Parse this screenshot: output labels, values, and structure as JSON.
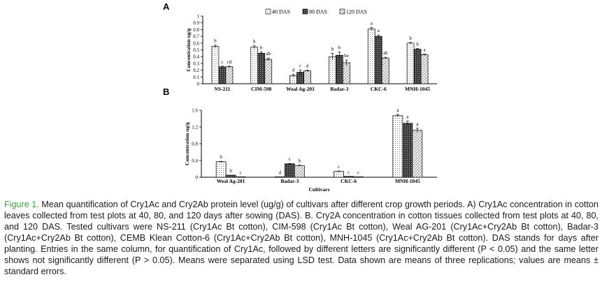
{
  "figure": {
    "caption_label": "Figure 1.",
    "caption_text": "Mean quantification of Cry1Ac and Cry2Ab protein level (ug/g) of cultivars after different crop growth periods. A) Cry1Ac concentration in cotton leaves collected from test plots at 40, 80, and 120 days after sowing (DAS). B. Cry2A concentration in cotton tissues collected from test plots at 40, 80, and 120 DAS. Tested cultivars were NS-211 (Cry1Ac Bt cotton), CIM-598 (Cry1Ac Bt cotton), Weal AG-201 (Cry1Ac+Cry2Ab Bt cotton), Badar-3 (Cry1Ac+Cry2Ab Bt cotton), CEMB Klean Cotton-6 (Cry1Ac+Cry2Ab Bt cotton), MNH-1045 (Cry1Ac+Cry2Ab Bt cotton). DAS stands for days after planting. Entries in the same column, for quantification of Cry1Ac, followed by different letters are significantly different (P < 0.05) and the same letter shows not significantly different (P > 0.05). Means were separated using LSD test. Data shown are means of three replications; values are means ± standard errors.",
    "fill_colors": {
      "s40": "#ffffff",
      "s80": "#555555",
      "s120": "#dddddd",
      "axis": "#000000"
    }
  },
  "chart_data": [
    {
      "panel": "A",
      "type": "bar",
      "title": "",
      "xlabel": "",
      "ylabel": "Concentration ug/g",
      "ylim": [
        0,
        1
      ],
      "yticks": [
        0,
        0.1,
        0.2,
        0.3,
        0.4,
        0.5,
        0.6,
        0.7,
        0.8,
        0.9,
        1
      ],
      "ytick_labels": [
        "0",
        "0.1",
        "0.2",
        "0.3",
        "0.4",
        "0.5",
        "0.6",
        "0.7",
        "0.8",
        "0.9",
        "1"
      ],
      "legend_position": "top",
      "categories": [
        "NS-211",
        "CIM-598",
        "Weal Ag-201",
        "Badar-3",
        "CKC-6",
        "MNH-1045"
      ],
      "series": [
        {
          "name": "40 DAS",
          "pattern": "dots",
          "values": [
            0.55,
            0.54,
            0.12,
            0.4,
            0.81,
            0.6
          ],
          "errors": [
            0.02,
            0.02,
            0.02,
            0.05,
            0.02,
            0.01
          ],
          "letters": [
            "b",
            "b",
            "d",
            "b",
            "a",
            "b"
          ]
        },
        {
          "name": "80 DAS",
          "pattern": "dark",
          "values": [
            0.25,
            0.45,
            0.17,
            0.42,
            0.7,
            0.51
          ],
          "errors": [
            0.01,
            0.02,
            0.03,
            0.05,
            0.02,
            0.01
          ],
          "letters": [
            "c",
            "b",
            "c",
            "b",
            "a",
            "b"
          ]
        },
        {
          "name": "120 DAS",
          "pattern": "hatch",
          "values": [
            0.25,
            0.36,
            0.19,
            0.31,
            0.38,
            0.43
          ],
          "errors": [
            0.01,
            0.02,
            0.01,
            0.04,
            0.01,
            0.01
          ],
          "letters": [
            "cd",
            "ab",
            "d",
            "be",
            "ab",
            "a"
          ]
        }
      ]
    },
    {
      "panel": "B",
      "type": "bar",
      "title": "",
      "xlabel": "Cultivars",
      "ylabel": "Concentration ug/g",
      "ylim": [
        0,
        1.6
      ],
      "yticks": [
        0,
        0.4,
        0.8,
        1.2,
        1.6
      ],
      "ytick_labels": [
        "0",
        "0.4",
        "0.8",
        "1.2",
        "1.6"
      ],
      "categories": [
        "Weal Ag-201",
        "Badar-3",
        "CKC-6",
        "MNH-1045"
      ],
      "series": [
        {
          "name": "40 DAS",
          "pattern": "dots",
          "values": [
            0.37,
            0.01,
            0.14,
            1.47
          ],
          "errors": [
            0.01,
            0.0,
            0.01,
            0.03
          ],
          "letters": [
            "b",
            "d",
            "c",
            "a"
          ]
        },
        {
          "name": "80 DAS",
          "pattern": "dark",
          "values": [
            0.05,
            0.32,
            0.02,
            1.29
          ],
          "errors": [
            0.0,
            0.01,
            0.0,
            0.05
          ],
          "letters": [
            "b",
            "c",
            "c",
            "a"
          ]
        },
        {
          "name": "120 DAS",
          "pattern": "hatch",
          "values": [
            0.01,
            0.28,
            0.01,
            1.12
          ],
          "errors": [
            0.0,
            0.01,
            0.0,
            0.05
          ],
          "letters": [
            "c",
            "b",
            "c",
            "a"
          ]
        }
      ]
    }
  ]
}
